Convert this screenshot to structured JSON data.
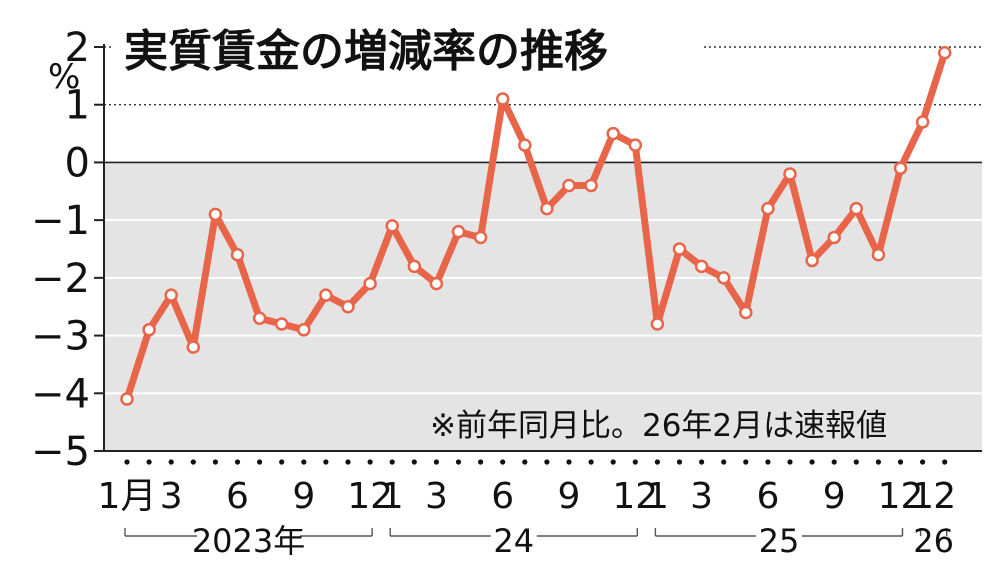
{
  "chart_data": {
    "type": "line",
    "title": "実質賃金の増減率の推移",
    "unit": "%",
    "note": "※前年同月比。26年2月は速報値",
    "ylim": [
      -5,
      2
    ],
    "yticks": [
      "2",
      "1",
      "0",
      "−1",
      "−2",
      "−3",
      "−4",
      "−5"
    ],
    "x_tick_labels": [
      {
        "month_index": 0,
        "label": "1月"
      },
      {
        "month_index": 2,
        "label": "3"
      },
      {
        "month_index": 5,
        "label": "6"
      },
      {
        "month_index": 8,
        "label": "9"
      },
      {
        "month_index": 11,
        "label": "12"
      },
      {
        "month_index": 12,
        "label": "1"
      },
      {
        "month_index": 14,
        "label": "3"
      },
      {
        "month_index": 17,
        "label": "6"
      },
      {
        "month_index": 20,
        "label": "9"
      },
      {
        "month_index": 23,
        "label": "12"
      },
      {
        "month_index": 24,
        "label": "1"
      },
      {
        "month_index": 26,
        "label": "3"
      },
      {
        "month_index": 29,
        "label": "6"
      },
      {
        "month_index": 32,
        "label": "9"
      },
      {
        "month_index": 35,
        "label": "12"
      },
      {
        "month_index": 36,
        "label": "1"
      },
      {
        "month_index": 37,
        "label": "2"
      }
    ],
    "year_groups": [
      {
        "label": "2023年",
        "start": 0,
        "end": 11
      },
      {
        "label": "24",
        "start": 12,
        "end": 23
      },
      {
        "label": "25",
        "start": 24,
        "end": 35
      },
      {
        "label": "26",
        "start": 36,
        "end": 37
      }
    ],
    "x": [
      "2023-01",
      "2023-02",
      "2023-03",
      "2023-04",
      "2023-05",
      "2023-06",
      "2023-07",
      "2023-08",
      "2023-09",
      "2023-10",
      "2023-11",
      "2023-12",
      "2024-01",
      "2024-02",
      "2024-03",
      "2024-04",
      "2024-05",
      "2024-06",
      "2024-07",
      "2024-08",
      "2024-09",
      "2024-10",
      "2024-11",
      "2024-12",
      "2025-01",
      "2025-02",
      "2025-03",
      "2025-04",
      "2025-05",
      "2025-06",
      "2025-07",
      "2025-08",
      "2025-09",
      "2025-10",
      "2025-11",
      "2025-12",
      "2026-01",
      "2026-02"
    ],
    "values": [
      -4.1,
      -2.9,
      -2.3,
      -3.2,
      -0.9,
      -1.6,
      -2.7,
      -2.8,
      -2.9,
      -2.3,
      -2.5,
      -2.1,
      -1.1,
      -1.8,
      -2.1,
      -1.2,
      -1.3,
      1.1,
      0.3,
      -0.8,
      -0.4,
      -0.4,
      0.5,
      0.3,
      -2.8,
      -1.5,
      -1.8,
      -2.0,
      -2.6,
      -0.8,
      -0.2,
      -1.7,
      -1.3,
      -0.8,
      -1.6,
      -0.1,
      0.7,
      1.9
    ],
    "colors": {
      "line": "#e8654a",
      "negative_bg": "#e4e4e4",
      "marker_fill": "#ffffff"
    }
  }
}
